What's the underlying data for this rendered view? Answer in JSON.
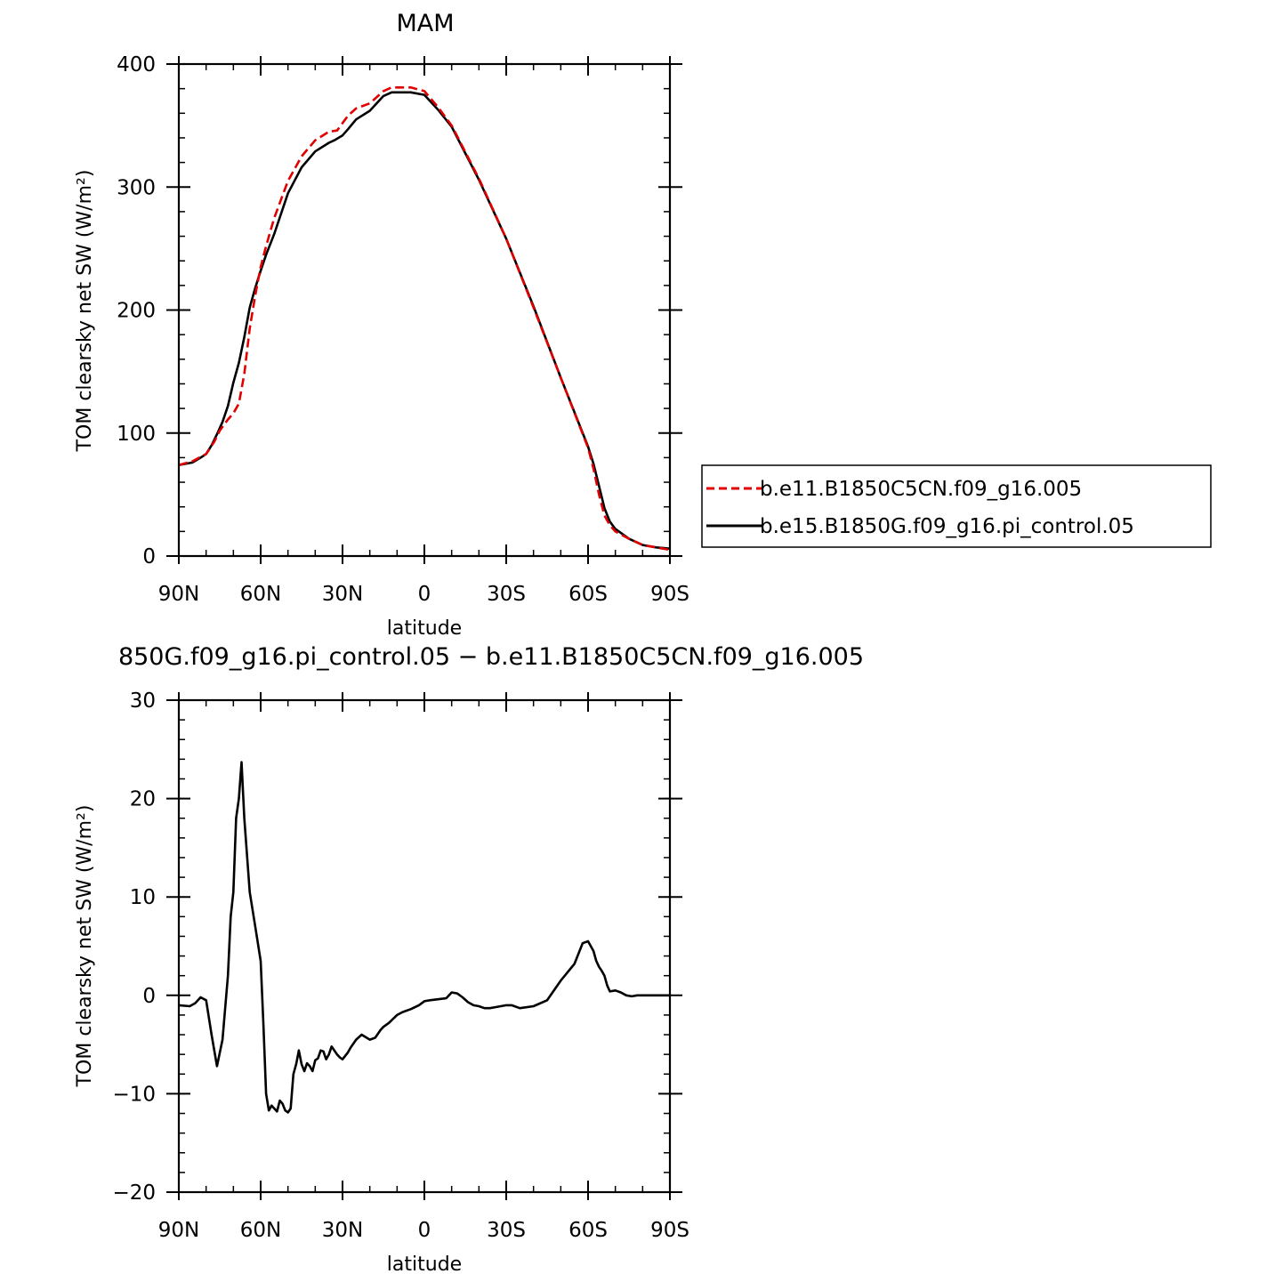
{
  "top_panel": {
    "title": "MAM",
    "xlabel": "latitude",
    "ylabel": "TOM clearsky net SW (W/m²)"
  },
  "bottom_panel": {
    "title": "850G.f09_g16.pi_control.05  −  b.e11.B1850C5CN.f09_g16.005",
    "xlabel": "latitude",
    "ylabel": "TOM clearsky net SW (W/m²)"
  },
  "legend": {
    "entries": [
      {
        "label": "b.e11.B1850C5CN.f09_g16.005",
        "color": "#e00000",
        "style": "dashed"
      },
      {
        "label": "b.e15.B1850G.f09_g16.pi_control.05",
        "color": "#000000",
        "style": "solid"
      }
    ]
  },
  "chart_data": [
    {
      "type": "line",
      "title": "MAM",
      "xlabel": "latitude",
      "ylabel": "TOM clearsky net SW (W/m²)",
      "xlim": [
        90,
        -90
      ],
      "ylim": [
        0,
        400
      ],
      "xticks": [
        90,
        60,
        30,
        0,
        -30,
        -60,
        -90
      ],
      "xticklabels": [
        "90N",
        "60N",
        "30N",
        "0",
        "30S",
        "60S",
        "90S"
      ],
      "yticks": [
        0,
        100,
        200,
        300,
        400
      ],
      "yticklabels": [
        "0",
        "100",
        "200",
        "300",
        "400"
      ],
      "legend": "right",
      "series": [
        {
          "name": "b.e11.B1850C5CN.f09_g16.005",
          "color": "#e00000",
          "style": "dashed",
          "x": [
            90,
            85,
            80,
            77,
            75,
            72,
            70,
            68,
            66,
            64,
            62,
            60,
            58,
            55,
            50,
            45,
            40,
            35,
            32,
            30,
            28,
            25,
            20,
            15,
            12,
            10,
            5,
            0,
            -5,
            -10,
            -20,
            -30,
            -40,
            -50,
            -60,
            -62,
            -64,
            -66,
            -68,
            -70,
            -75,
            -80,
            -85,
            -90
          ],
          "y": [
            74,
            77,
            83,
            93,
            102,
            111,
            116,
            124,
            148,
            185,
            212,
            235,
            252,
            275,
            305,
            325,
            338,
            345,
            346,
            352,
            358,
            364,
            368,
            378,
            381,
            381,
            381,
            378,
            365,
            350,
            307,
            258,
            202,
            145,
            88,
            71,
            50,
            33,
            25,
            20,
            14,
            9,
            7,
            5
          ]
        },
        {
          "name": "b.e15.B1850G.f09_g16.pi_control.05",
          "color": "#000000",
          "style": "solid",
          "x": [
            90,
            85,
            82,
            80,
            78,
            76,
            74,
            72,
            70,
            68,
            66,
            64,
            62,
            60,
            58,
            55,
            50,
            45,
            40,
            35,
            33,
            30,
            28,
            25,
            20,
            15,
            12,
            10,
            5,
            0,
            -5,
            -10,
            -20,
            -30,
            -40,
            -50,
            -60,
            -62,
            -64,
            -66,
            -68,
            -70,
            -75,
            -80,
            -85,
            -90
          ],
          "y": [
            74,
            76,
            80,
            83,
            90,
            99,
            109,
            122,
            141,
            157,
            178,
            202,
            218,
            232,
            245,
            262,
            295,
            316,
            329,
            336,
            338,
            342,
            347,
            355,
            362,
            374,
            377,
            377,
            377,
            375,
            363,
            349,
            306,
            258,
            203,
            145,
            89,
            75,
            57,
            39,
            28,
            22,
            14,
            9,
            7,
            6
          ]
        }
      ]
    },
    {
      "type": "line",
      "title": "850G.f09_g16.pi_control.05  −  b.e11.B1850C5CN.f09_g16.005",
      "xlabel": "latitude",
      "ylabel": "TOM clearsky net SW (W/m²)",
      "xlim": [
        90,
        -90
      ],
      "ylim": [
        -20,
        30
      ],
      "xticks": [
        90,
        60,
        30,
        0,
        -30,
        -60,
        -90
      ],
      "xticklabels": [
        "90N",
        "60N",
        "30N",
        "0",
        "30S",
        "60S",
        "90S"
      ],
      "yticks": [
        -20,
        -10,
        0,
        10,
        20,
        30
      ],
      "yticklabels": [
        "−20",
        "−10",
        "0",
        "10",
        "20",
        "30"
      ],
      "series": [
        {
          "name": "b.e15.B1850G.f09_g16.pi_control.05 − b.e11.B1850C5CN.f09_g16.005",
          "color": "#000000",
          "style": "solid",
          "x": [
            90,
            86,
            84,
            82,
            80,
            78,
            76,
            74,
            72,
            71,
            70,
            69,
            68,
            67,
            66,
            64,
            62,
            60,
            59,
            58,
            57,
            56,
            55,
            54,
            53,
            52,
            51,
            50,
            49,
            48,
            47,
            46,
            45,
            44,
            43,
            42,
            41,
            40,
            39,
            38,
            37,
            36,
            35,
            34,
            33,
            32,
            31,
            30,
            28,
            27,
            25,
            23,
            20,
            18,
            16,
            15,
            13,
            10,
            8,
            5,
            2,
            0,
            -2,
            -5,
            -8,
            -10,
            -12,
            -14,
            -16,
            -18,
            -20,
            -22,
            -24,
            -26,
            -28,
            -30,
            -32,
            -35,
            -40,
            -45,
            -50,
            -55,
            -58,
            -60,
            -62,
            -63,
            -64,
            -65,
            -66,
            -67,
            -68,
            -70,
            -72,
            -74,
            -76,
            -78,
            -80,
            -85,
            -90
          ],
          "y": [
            -1,
            -1.1,
            -0.8,
            -0.2,
            -0.5,
            -4,
            -7.2,
            -4.5,
            2,
            8,
            10.5,
            18,
            20,
            23.7,
            18,
            10.5,
            7,
            3.5,
            -3,
            -10,
            -11.7,
            -11.2,
            -11.5,
            -11.8,
            -10.7,
            -11,
            -11.7,
            -11.9,
            -11.5,
            -8,
            -7,
            -5.6,
            -7,
            -7.7,
            -6.9,
            -7.2,
            -7.7,
            -6.6,
            -6.4,
            -5.6,
            -5.7,
            -6.5,
            -6,
            -5.2,
            -5.6,
            -6,
            -6.3,
            -6.5,
            -5.8,
            -5.3,
            -4.5,
            -4,
            -4.5,
            -4.3,
            -3.5,
            -3.2,
            -2.8,
            -2,
            -1.7,
            -1.4,
            -1,
            -0.6,
            -0.5,
            -0.4,
            -0.3,
            0.3,
            0.2,
            -0.2,
            -0.7,
            -1,
            -1.1,
            -1.3,
            -1.3,
            -1.2,
            -1.1,
            -1,
            -1,
            -1.3,
            -1.1,
            -0.5,
            1.5,
            3.2,
            5.3,
            5.5,
            4.5,
            3.5,
            2.9,
            2.5,
            2,
            1,
            0.4,
            0.5,
            0.3,
            0,
            -0.1,
            0,
            0,
            0,
            0
          ]
        }
      ]
    }
  ]
}
